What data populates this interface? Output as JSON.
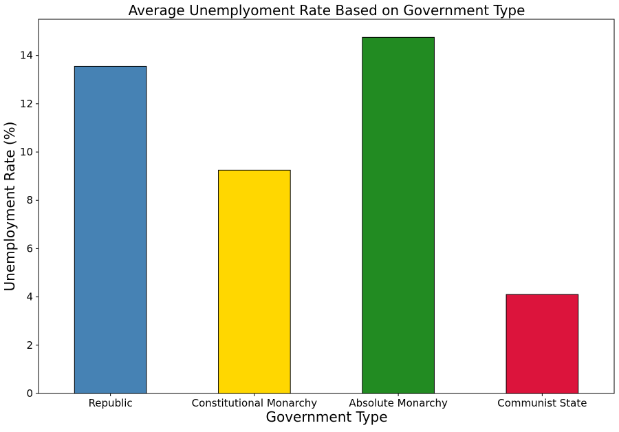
{
  "chart_data": {
    "type": "bar",
    "title": "Average Unemplyoment Rate Based on Government Type",
    "xlabel": "Government Type",
    "ylabel": "Unemployment Rate (%)",
    "categories": [
      "Republic",
      "Constitutional Monarchy",
      "Absolute Monarchy",
      "Communist State"
    ],
    "values": [
      13.55,
      9.25,
      14.75,
      4.1
    ],
    "colors": [
      "#4682b4",
      "#ffd700",
      "#228b22",
      "#dc143c"
    ],
    "bar_edge_color": "#000000",
    "ylim": [
      0,
      15.5
    ],
    "yticks": [
      0,
      2,
      4,
      6,
      8,
      10,
      12,
      14
    ],
    "grid": false,
    "legend": "none"
  }
}
